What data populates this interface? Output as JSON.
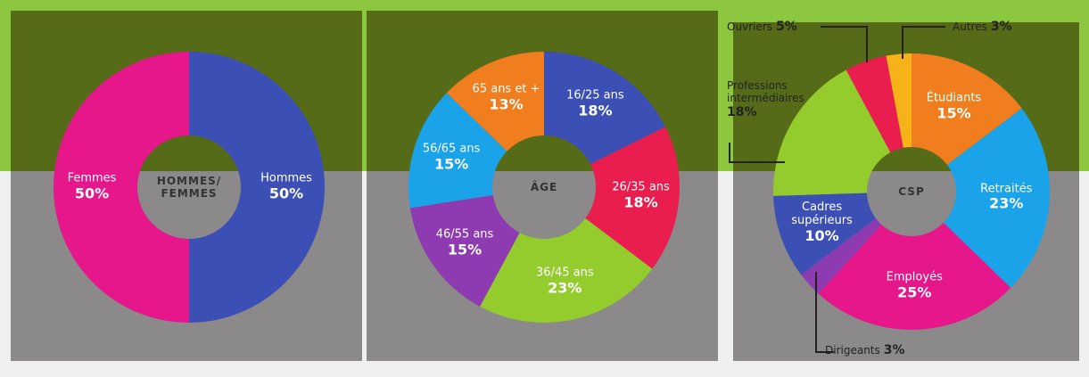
{
  "chart_data": [
    {
      "type": "pie",
      "title": "HOMMES/ FEMMES",
      "categories": [
        "Hommes",
        "Femmes"
      ],
      "values": [
        50,
        50
      ],
      "value_labels": [
        "50%",
        "50%"
      ],
      "colors": [
        "#3b4fb5",
        "#e6168b"
      ]
    },
    {
      "type": "pie",
      "title": "ÂGE",
      "categories": [
        "16/25 ans",
        "26/35 ans",
        "36/45 ans",
        "46/55 ans",
        "56/65 ans",
        "65 ans et +"
      ],
      "values": [
        18,
        18,
        23,
        15,
        15,
        13
      ],
      "value_labels": [
        "18%",
        "18%",
        "23%",
        "15%",
        "15%",
        "13%"
      ],
      "colors": [
        "#3b4fb5",
        "#e91e4f",
        "#93cc2c",
        "#8e3ab0",
        "#1aa3e8",
        "#f07d1e"
      ]
    },
    {
      "type": "pie",
      "title": "CSP",
      "categories": [
        "Étudiants",
        "Retraités",
        "Employés",
        "Dirigeants",
        "Cadres supérieurs",
        "Professions intermédiaires",
        "Ouvriers",
        "Autres"
      ],
      "values": [
        15,
        23,
        25,
        3,
        10,
        18,
        5,
        3
      ],
      "value_labels": [
        "15%",
        "23%",
        "25%",
        "3%",
        "10%",
        "18%",
        "5%",
        "3%"
      ],
      "colors": [
        "#f07d1e",
        "#1aa3e8",
        "#e6168b",
        "#8e3ab0",
        "#3b4fb5",
        "#93cc2c",
        "#e91e4f",
        "#f8b219"
      ]
    }
  ]
}
